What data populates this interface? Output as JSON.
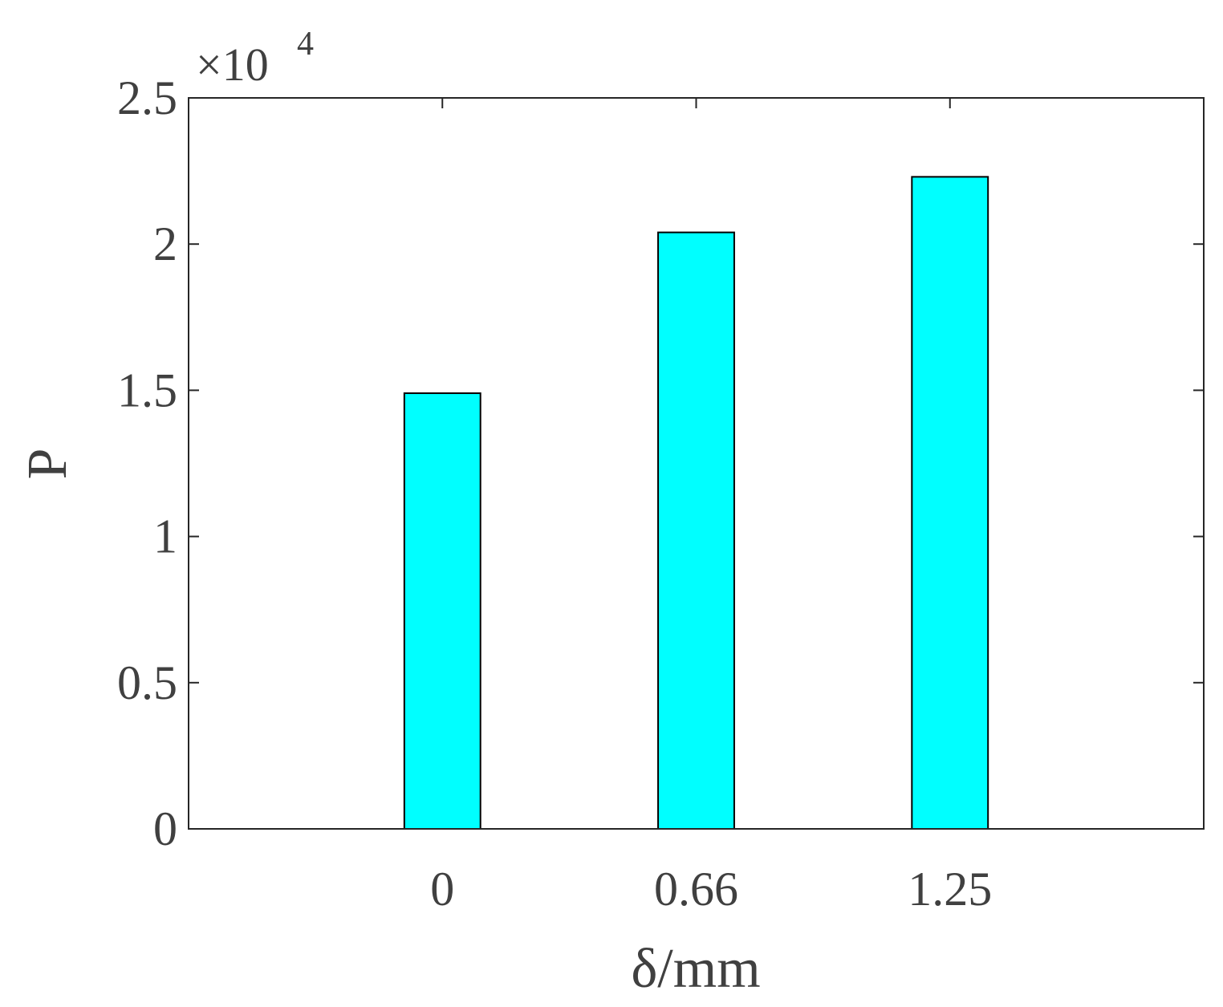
{
  "chart_data": {
    "type": "bar",
    "ylabel": "P",
    "xlabel": "δ/mm",
    "y_multiplier": {
      "base": "×10",
      "exponent": "4"
    },
    "categories": [
      "0",
      "0.66",
      "1.25"
    ],
    "values": [
      1.49,
      2.04,
      2.23
    ],
    "color": "#00ffff",
    "ylim": [
      0,
      2.5
    ],
    "yticks": [
      0,
      0.5,
      1,
      1.5,
      2,
      2.5
    ],
    "grid": false
  }
}
